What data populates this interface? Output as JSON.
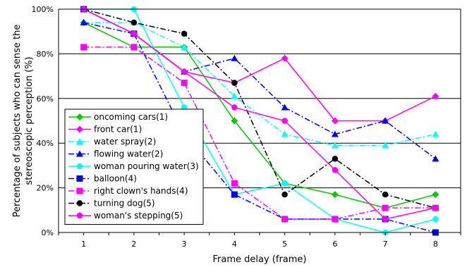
{
  "chart_data": {
    "type": "line",
    "xlabel": "Frame delay (frame)",
    "ylabel_lines": [
      "Percentage of subjects who can sense the",
      "stereoscopic perception (%)"
    ],
    "x": [
      1,
      2,
      3,
      4,
      5,
      6,
      7,
      8
    ],
    "ylim": [
      0,
      100
    ],
    "yticks": [
      "0%",
      "20%",
      "40%",
      "60%",
      "80%",
      "100%"
    ],
    "grid": "horizontal",
    "legend_position": "lower-left",
    "series": [
      {
        "name": "oncoming cars(1)",
        "color": "#00cc00",
        "marker": "diamond",
        "dash": "solid",
        "values": [
          94,
          83,
          83,
          50,
          22,
          17,
          11,
          17
        ]
      },
      {
        "name": "front car(1)",
        "color": "#ff00ff",
        "marker": "diamond",
        "dash": "solid",
        "values": [
          100,
          89,
          72,
          67,
          78,
          50,
          50,
          61
        ]
      },
      {
        "name": "water spray(2)",
        "color": "#00ffff",
        "marker": "triangle",
        "dash": "dashdot",
        "values": [
          94,
          94,
          83,
          61,
          44,
          39,
          39,
          44
        ]
      },
      {
        "name": "flowing water(2)",
        "color": "#0000ff",
        "marker": "triangle",
        "dash": "dashdot",
        "values": [
          94,
          89,
          72,
          78,
          56,
          44,
          50,
          33
        ]
      },
      {
        "name": "woman pouring water(3)",
        "color": "#00ffff",
        "marker": "circle",
        "dash": "solid",
        "values": [
          100,
          100,
          56,
          17,
          22,
          6,
          0,
          6
        ]
      },
      {
        "name": "balloon(4)",
        "color": "#0000ff",
        "marker": "square",
        "dash": "dashdot",
        "values": [
          100,
          89,
          44,
          17,
          6,
          6,
          6,
          0
        ]
      },
      {
        "name": "right clown's hands(4)",
        "color": "#ff00ff",
        "marker": "square",
        "dash": "dashdot",
        "values": [
          83,
          83,
          67,
          22,
          6,
          6,
          11,
          11
        ]
      },
      {
        "name": "turning dog(5)",
        "color": "#000000",
        "marker": "circle",
        "dash": "dashdot",
        "values": [
          100,
          94,
          89,
          67,
          17,
          33,
          17,
          11
        ]
      },
      {
        "name": "woman's stepping(5)",
        "color": "#ff00ff",
        "marker": "circle",
        "dash": "solid",
        "values": [
          100,
          89,
          72,
          56,
          50,
          28,
          6,
          11
        ]
      }
    ]
  }
}
